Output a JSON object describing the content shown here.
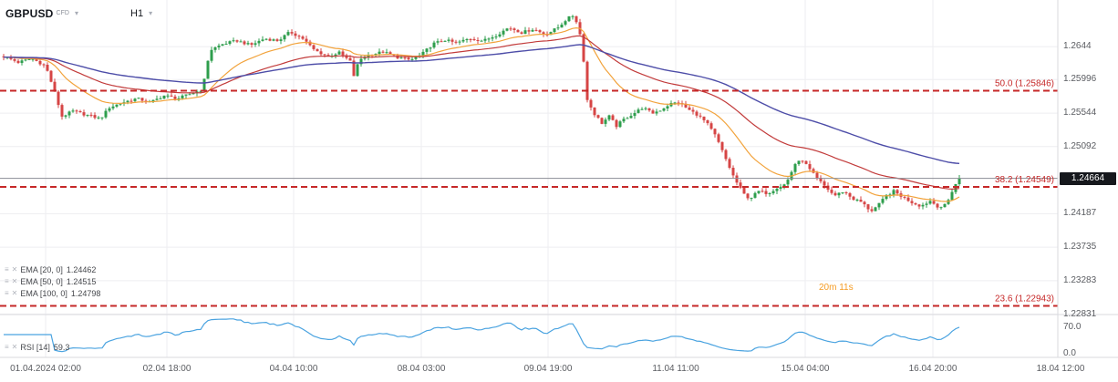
{
  "header": {
    "symbol": "GBPUSD",
    "instrument_type": "CFD",
    "timeframe": "H1"
  },
  "legend": {
    "indicators": [
      {
        "label": "EMA [20, 0]",
        "value": "1.24462"
      },
      {
        "label": "EMA [50, 0]",
        "value": "1.24515"
      },
      {
        "label": "EMA [100, 0]",
        "value": "1.24798"
      }
    ],
    "oscillator": {
      "label": "RSI [14]",
      "value": "59.3"
    }
  },
  "colors": {
    "candle_up": "#2e9e4c",
    "candle_down": "#d64545",
    "ema20": "#f2a33c",
    "ema50": "#c23b3b",
    "ema100": "#4d4da8",
    "rsi_line": "#4aa3e0",
    "fib_line": "#c62828",
    "current_price_badge": "#16181d",
    "countdown": "#f59b22",
    "grid": "#eeeef1",
    "separator": "#d9dade",
    "price_line": "#8a8d94"
  },
  "chart_data": {
    "type": "candlestick",
    "title": "GBPUSD CFD, H1",
    "x_tick_labels": [
      "01.04.2024 02:00",
      "02.04 18:00",
      "04.04 10:00",
      "08.04 03:00",
      "09.04 19:00",
      "11.04 11:00",
      "15.04 04:00",
      "16.04 20:00",
      "18.04 12:00"
    ],
    "price_axis_values": [
      1.2644,
      1.25996,
      1.25544,
      1.25092,
      1.24187,
      1.23735,
      1.23283,
      1.22831
    ],
    "y_range": [
      1.2284,
      1.2707
    ],
    "current_price": 1.24664,
    "overlays": [
      {
        "name": "EMA 20",
        "last": 1.24462
      },
      {
        "name": "EMA 50",
        "last": 1.24515
      },
      {
        "name": "EMA 100",
        "last": 1.24798
      }
    ],
    "oscillator": {
      "name": "RSI",
      "period": 14,
      "last": 59.3,
      "axis_levels": [
        70,
        0
      ]
    },
    "fibonacci": [
      {
        "level": "50.0",
        "price": 1.25846
      },
      {
        "level": "38.2",
        "price": 1.24549
      },
      {
        "level": "23.6",
        "price": 1.22943
      }
    ],
    "annotations": [
      {
        "text": "20m 11s",
        "x": 898,
        "y": 318
      }
    ],
    "price_path": [
      [
        4,
        1.2631
      ],
      [
        20,
        1.2623
      ],
      [
        35,
        1.2628
      ],
      [
        50,
        1.2618
      ],
      [
        58,
        1.259
      ],
      [
        68,
        1.255
      ],
      [
        80,
        1.2557
      ],
      [
        95,
        1.2552
      ],
      [
        110,
        1.2547
      ],
      [
        120,
        1.2562
      ],
      [
        135,
        1.2569
      ],
      [
        150,
        1.2574
      ],
      [
        165,
        1.2569
      ],
      [
        180,
        1.2578
      ],
      [
        195,
        1.2574
      ],
      [
        210,
        1.2581
      ],
      [
        222,
        1.2586
      ],
      [
        230,
        1.2639
      ],
      [
        245,
        1.2648
      ],
      [
        260,
        1.2652
      ],
      [
        275,
        1.2646
      ],
      [
        290,
        1.2655
      ],
      [
        305,
        1.2652
      ],
      [
        318,
        1.2664
      ],
      [
        332,
        1.2655
      ],
      [
        345,
        1.2639
      ],
      [
        360,
        1.2631
      ],
      [
        372,
        1.2636
      ],
      [
        385,
        1.2623
      ],
      [
        389,
        1.2599
      ],
      [
        393,
        1.2626
      ],
      [
        405,
        1.2633
      ],
      [
        420,
        1.2637
      ],
      [
        435,
        1.263
      ],
      [
        450,
        1.2626
      ],
      [
        462,
        1.2633
      ],
      [
        475,
        1.2648
      ],
      [
        488,
        1.2653
      ],
      [
        500,
        1.2649
      ],
      [
        515,
        1.2655
      ],
      [
        530,
        1.2652
      ],
      [
        545,
        1.266
      ],
      [
        558,
        1.267
      ],
      [
        572,
        1.2663
      ],
      [
        585,
        1.2668
      ],
      [
        598,
        1.266
      ],
      [
        612,
        1.267
      ],
      [
        622,
        1.2682
      ],
      [
        630,
        1.2687
      ],
      [
        638,
        1.2652
      ],
      [
        644,
        1.2572
      ],
      [
        652,
        1.2553
      ],
      [
        660,
        1.2541
      ],
      [
        668,
        1.255
      ],
      [
        676,
        1.2537
      ],
      [
        685,
        1.2547
      ],
      [
        695,
        1.2554
      ],
      [
        705,
        1.2562
      ],
      [
        715,
        1.2554
      ],
      [
        725,
        1.2559
      ],
      [
        735,
        1.2567
      ],
      [
        745,
        1.2569
      ],
      [
        755,
        1.2559
      ],
      [
        765,
        1.2552
      ],
      [
        775,
        1.2541
      ],
      [
        785,
        1.2523
      ],
      [
        795,
        1.2495
      ],
      [
        805,
        1.2467
      ],
      [
        815,
        1.2446
      ],
      [
        822,
        1.2439
      ],
      [
        832,
        1.2449
      ],
      [
        842,
        1.2446
      ],
      [
        852,
        1.2454
      ],
      [
        862,
        1.2459
      ],
      [
        872,
        1.2486
      ],
      [
        880,
        1.2491
      ],
      [
        888,
        1.2478
      ],
      [
        896,
        1.2466
      ],
      [
        905,
        1.2455
      ],
      [
        915,
        1.2443
      ],
      [
        925,
        1.2449
      ],
      [
        935,
        1.2439
      ],
      [
        945,
        1.2434
      ],
      [
        955,
        1.2422
      ],
      [
        963,
        1.243
      ],
      [
        972,
        1.2443
      ],
      [
        980,
        1.2449
      ],
      [
        990,
        1.2441
      ],
      [
        1000,
        1.2434
      ],
      [
        1010,
        1.2429
      ],
      [
        1020,
        1.2436
      ],
      [
        1030,
        1.2427
      ],
      [
        1038,
        1.2431
      ],
      [
        1046,
        1.2455
      ],
      [
        1052,
        1.24664
      ]
    ]
  }
}
